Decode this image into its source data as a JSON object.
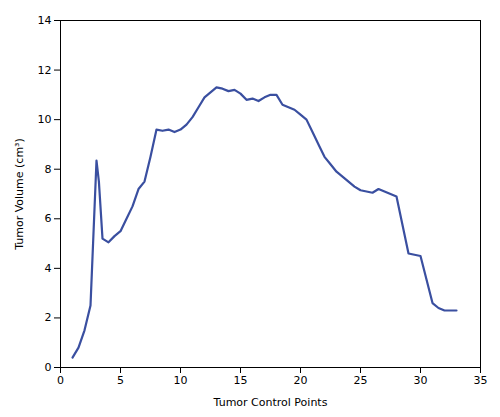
{
  "chart_data": {
    "type": "line",
    "xlabel": "Tumor Control Points",
    "ylabel": "Tumor Volume (cm³)",
    "color": "#3a4fa0",
    "x": [
      1,
      1.5,
      2,
      2.5,
      3,
      3.2,
      3.5,
      4,
      4.5,
      5,
      5.5,
      6,
      6.5,
      7,
      7.5,
      8,
      8.5,
      9,
      9.5,
      10,
      10.5,
      11,
      11.5,
      12,
      12.5,
      13,
      13.5,
      14,
      14.5,
      15,
      15.5,
      16,
      16.5,
      17,
      17.5,
      18,
      18.5,
      19,
      19.5,
      20,
      20.5,
      21,
      21.5,
      22,
      22.5,
      23,
      23.5,
      24,
      24.5,
      25,
      25.5,
      26,
      26.5,
      27,
      27.5,
      28,
      29,
      30,
      31,
      31.5,
      32,
      33
    ],
    "values": [
      0.4,
      0.8,
      1.5,
      2.5,
      8.35,
      7.5,
      5.2,
      5.05,
      5.3,
      5.5,
      6.0,
      6.5,
      7.2,
      7.5,
      8.5,
      9.6,
      9.55,
      9.6,
      9.5,
      9.6,
      9.8,
      10.1,
      10.5,
      10.9,
      11.1,
      11.3,
      11.25,
      11.15,
      11.2,
      11.05,
      10.8,
      10.85,
      10.75,
      10.9,
      11.0,
      11.0,
      10.6,
      10.5,
      10.4,
      10.2,
      10.0,
      9.5,
      9.0,
      8.5,
      8.2,
      7.9,
      7.7,
      7.5,
      7.3,
      7.15,
      7.1,
      7.05,
      7.2,
      7.1,
      7.0,
      6.9,
      4.6,
      4.5,
      2.6,
      2.4,
      2.3,
      2.3
    ],
    "xlim": [
      0,
      35
    ],
    "ylim": [
      0,
      14
    ],
    "xticks": [
      0,
      5,
      10,
      15,
      20,
      25,
      30,
      35
    ],
    "yticks": [
      0,
      2,
      4,
      6,
      8,
      10,
      12,
      14
    ],
    "grid": false
  }
}
